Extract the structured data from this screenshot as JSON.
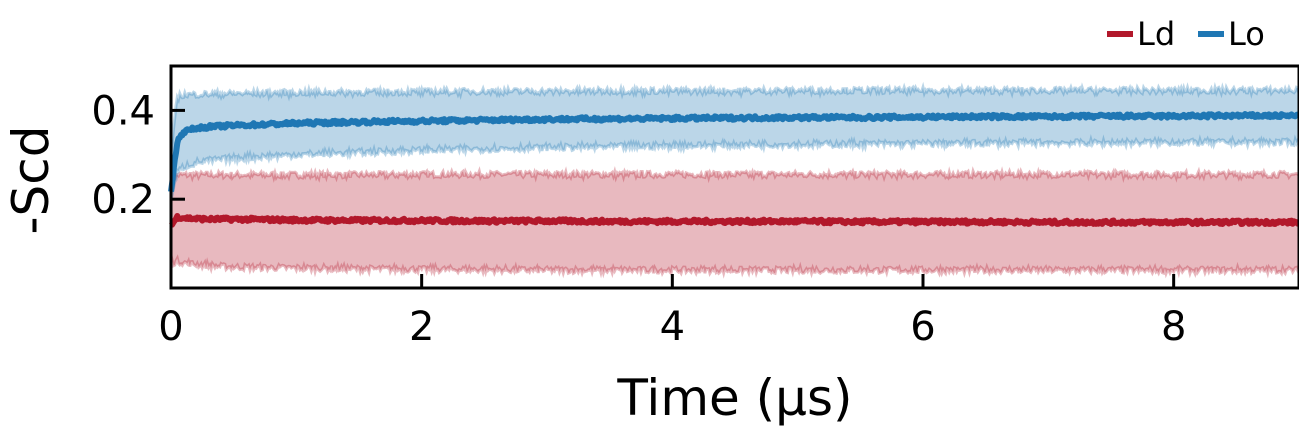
{
  "chart_data": {
    "type": "line",
    "title": "",
    "xlabel": "Time (μs)",
    "ylabel": "-Scd",
    "xlim": [
      0,
      9
    ],
    "ylim": [
      0,
      0.5
    ],
    "xticks": [
      0,
      2,
      4,
      6,
      8
    ],
    "yticks": [
      0.2,
      0.4
    ],
    "xtick_labels": [
      "0",
      "2",
      "4",
      "6",
      "8"
    ],
    "ytick_labels": [
      "0.2",
      "0.4"
    ],
    "grid": false,
    "legend_position": "top-right, outside",
    "series": [
      {
        "name": "Ld",
        "color": "#b2182b",
        "x": [
          0,
          0.05,
          0.1,
          0.2,
          0.3,
          0.5,
          1,
          1.5,
          2,
          2.5,
          3,
          3.5,
          4,
          4.5,
          5,
          5.5,
          6,
          6.5,
          7,
          7.5,
          8,
          8.5,
          9
        ],
        "mean": [
          0.14,
          0.16,
          0.158,
          0.156,
          0.155,
          0.155,
          0.153,
          0.152,
          0.152,
          0.151,
          0.151,
          0.15,
          0.15,
          0.15,
          0.15,
          0.149,
          0.149,
          0.149,
          0.148,
          0.148,
          0.148,
          0.148,
          0.148
        ],
        "upper": [
          0.24,
          0.255,
          0.255,
          0.255,
          0.255,
          0.255,
          0.255,
          0.255,
          0.256,
          0.256,
          0.256,
          0.256,
          0.256,
          0.256,
          0.256,
          0.256,
          0.256,
          0.256,
          0.256,
          0.256,
          0.256,
          0.256,
          0.256
        ],
        "lower": [
          0.055,
          0.06,
          0.057,
          0.053,
          0.05,
          0.047,
          0.045,
          0.043,
          0.042,
          0.041,
          0.04,
          0.04,
          0.04,
          0.04,
          0.04,
          0.04,
          0.04,
          0.04,
          0.04,
          0.04,
          0.04,
          0.04,
          0.04
        ]
      },
      {
        "name": "Lo",
        "color": "#1f77b4",
        "x": [
          0,
          0.05,
          0.1,
          0.2,
          0.3,
          0.5,
          1,
          1.5,
          2,
          2.5,
          3,
          3.5,
          4,
          4.5,
          5,
          5.5,
          6,
          6.5,
          7,
          7.5,
          8,
          8.5,
          9
        ],
        "mean": [
          0.22,
          0.33,
          0.352,
          0.36,
          0.363,
          0.366,
          0.371,
          0.374,
          0.376,
          0.378,
          0.38,
          0.381,
          0.382,
          0.383,
          0.384,
          0.384,
          0.385,
          0.386,
          0.386,
          0.387,
          0.387,
          0.388,
          0.388
        ],
        "upper": [
          0.3,
          0.43,
          0.435,
          0.436,
          0.437,
          0.438,
          0.44,
          0.441,
          0.442,
          0.443,
          0.443,
          0.444,
          0.444,
          0.444,
          0.445,
          0.445,
          0.445,
          0.445,
          0.445,
          0.445,
          0.445,
          0.445,
          0.445
        ],
        "lower": [
          0.2,
          0.26,
          0.272,
          0.282,
          0.287,
          0.292,
          0.3,
          0.305,
          0.31,
          0.313,
          0.316,
          0.318,
          0.32,
          0.322,
          0.323,
          0.324,
          0.325,
          0.326,
          0.327,
          0.327,
          0.328,
          0.328,
          0.328
        ]
      }
    ]
  }
}
